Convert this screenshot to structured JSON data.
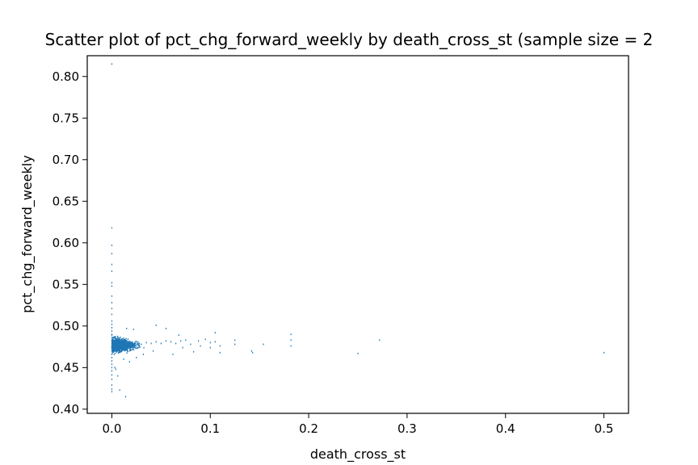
{
  "chart_data": {
    "type": "scatter",
    "title": "Scatter plot of pct_chg_forward_weekly by death_cross_st (sample size = 2",
    "xlabel": "death_cross_st",
    "ylabel": "pct_chg_forward_weekly",
    "xlim": [
      -0.025,
      0.525
    ],
    "ylim": [
      0.395,
      0.825
    ],
    "xticks": [
      0.0,
      0.1,
      0.2,
      0.3,
      0.4,
      0.5
    ],
    "xtick_labels": [
      "0.0",
      "0.1",
      "0.2",
      "0.3",
      "0.4",
      "0.5"
    ],
    "yticks": [
      0.4,
      0.45,
      0.5,
      0.55,
      0.6,
      0.65,
      0.7,
      0.75,
      0.8
    ],
    "ytick_labels": [
      "0.40",
      "0.45",
      "0.50",
      "0.55",
      "0.60",
      "0.65",
      "0.70",
      "0.75",
      "0.80"
    ],
    "grid": false,
    "marker_color": "#1f77b4",
    "points": [
      [
        0.0,
        0.815
      ],
      [
        0.0,
        0.618
      ],
      [
        0.0,
        0.597
      ],
      [
        0.0,
        0.587
      ],
      [
        0.0,
        0.574
      ],
      [
        0.0,
        0.566
      ],
      [
        0.0,
        0.552
      ],
      [
        0.0,
        0.548
      ],
      [
        0.0,
        0.536
      ],
      [
        0.0,
        0.528
      ],
      [
        0.0,
        0.521
      ],
      [
        0.0,
        0.514
      ],
      [
        0.0,
        0.506
      ],
      [
        0.0,
        0.502
      ],
      [
        0.0,
        0.498
      ],
      [
        0.0,
        0.494
      ],
      [
        0.0,
        0.49
      ],
      [
        0.0,
        0.486
      ],
      [
        0.0,
        0.482
      ],
      [
        0.0,
        0.478
      ],
      [
        0.0,
        0.474
      ],
      [
        0.0,
        0.47
      ],
      [
        0.0,
        0.466
      ],
      [
        0.0,
        0.462
      ],
      [
        0.0,
        0.458
      ],
      [
        0.0,
        0.454
      ],
      [
        0.0,
        0.45
      ],
      [
        0.0,
        0.446
      ],
      [
        0.0,
        0.441
      ],
      [
        0.0,
        0.436
      ],
      [
        0.0,
        0.429
      ],
      [
        0.0,
        0.424
      ],
      [
        0.0,
        0.421
      ],
      [
        0.005,
        0.476
      ],
      [
        0.01,
        0.478
      ],
      [
        0.015,
        0.474
      ],
      [
        0.02,
        0.48
      ],
      [
        0.025,
        0.476
      ],
      [
        0.03,
        0.478
      ],
      [
        0.035,
        0.48
      ],
      [
        0.04,
        0.479
      ],
      [
        0.045,
        0.481
      ],
      [
        0.05,
        0.479
      ],
      [
        0.055,
        0.482
      ],
      [
        0.06,
        0.481
      ],
      [
        0.062,
        0.466
      ],
      [
        0.065,
        0.479
      ],
      [
        0.07,
        0.482
      ],
      [
        0.072,
        0.474
      ],
      [
        0.075,
        0.483
      ],
      [
        0.08,
        0.478
      ],
      [
        0.083,
        0.469
      ],
      [
        0.088,
        0.482
      ],
      [
        0.09,
        0.476
      ],
      [
        0.095,
        0.484
      ],
      [
        0.1,
        0.48
      ],
      [
        0.1,
        0.474
      ],
      [
        0.105,
        0.492
      ],
      [
        0.105,
        0.481
      ],
      [
        0.11,
        0.468
      ],
      [
        0.11,
        0.476
      ],
      [
        0.125,
        0.483
      ],
      [
        0.125,
        0.478
      ],
      [
        0.142,
        0.47
      ],
      [
        0.143,
        0.468
      ],
      [
        0.154,
        0.478
      ],
      [
        0.182,
        0.49
      ],
      [
        0.182,
        0.483
      ],
      [
        0.182,
        0.476
      ],
      [
        0.25,
        0.467
      ],
      [
        0.272,
        0.483
      ],
      [
        0.5,
        0.468
      ],
      [
        0.003,
        0.45
      ],
      [
        0.004,
        0.448
      ],
      [
        0.006,
        0.44
      ],
      [
        0.008,
        0.423
      ],
      [
        0.014,
        0.415
      ],
      [
        0.012,
        0.46
      ],
      [
        0.018,
        0.457
      ],
      [
        0.025,
        0.462
      ],
      [
        0.032,
        0.466
      ],
      [
        0.042,
        0.47
      ],
      [
        0.045,
        0.501
      ],
      [
        0.055,
        0.497
      ],
      [
        0.022,
        0.496
      ],
      [
        0.015,
        0.497
      ],
      [
        0.068,
        0.489
      ]
    ],
    "cluster": {
      "x_center": 0.014,
      "x_spread": 0.035,
      "y_center": 0.477,
      "y_spread": 0.018,
      "count": 1400
    }
  }
}
